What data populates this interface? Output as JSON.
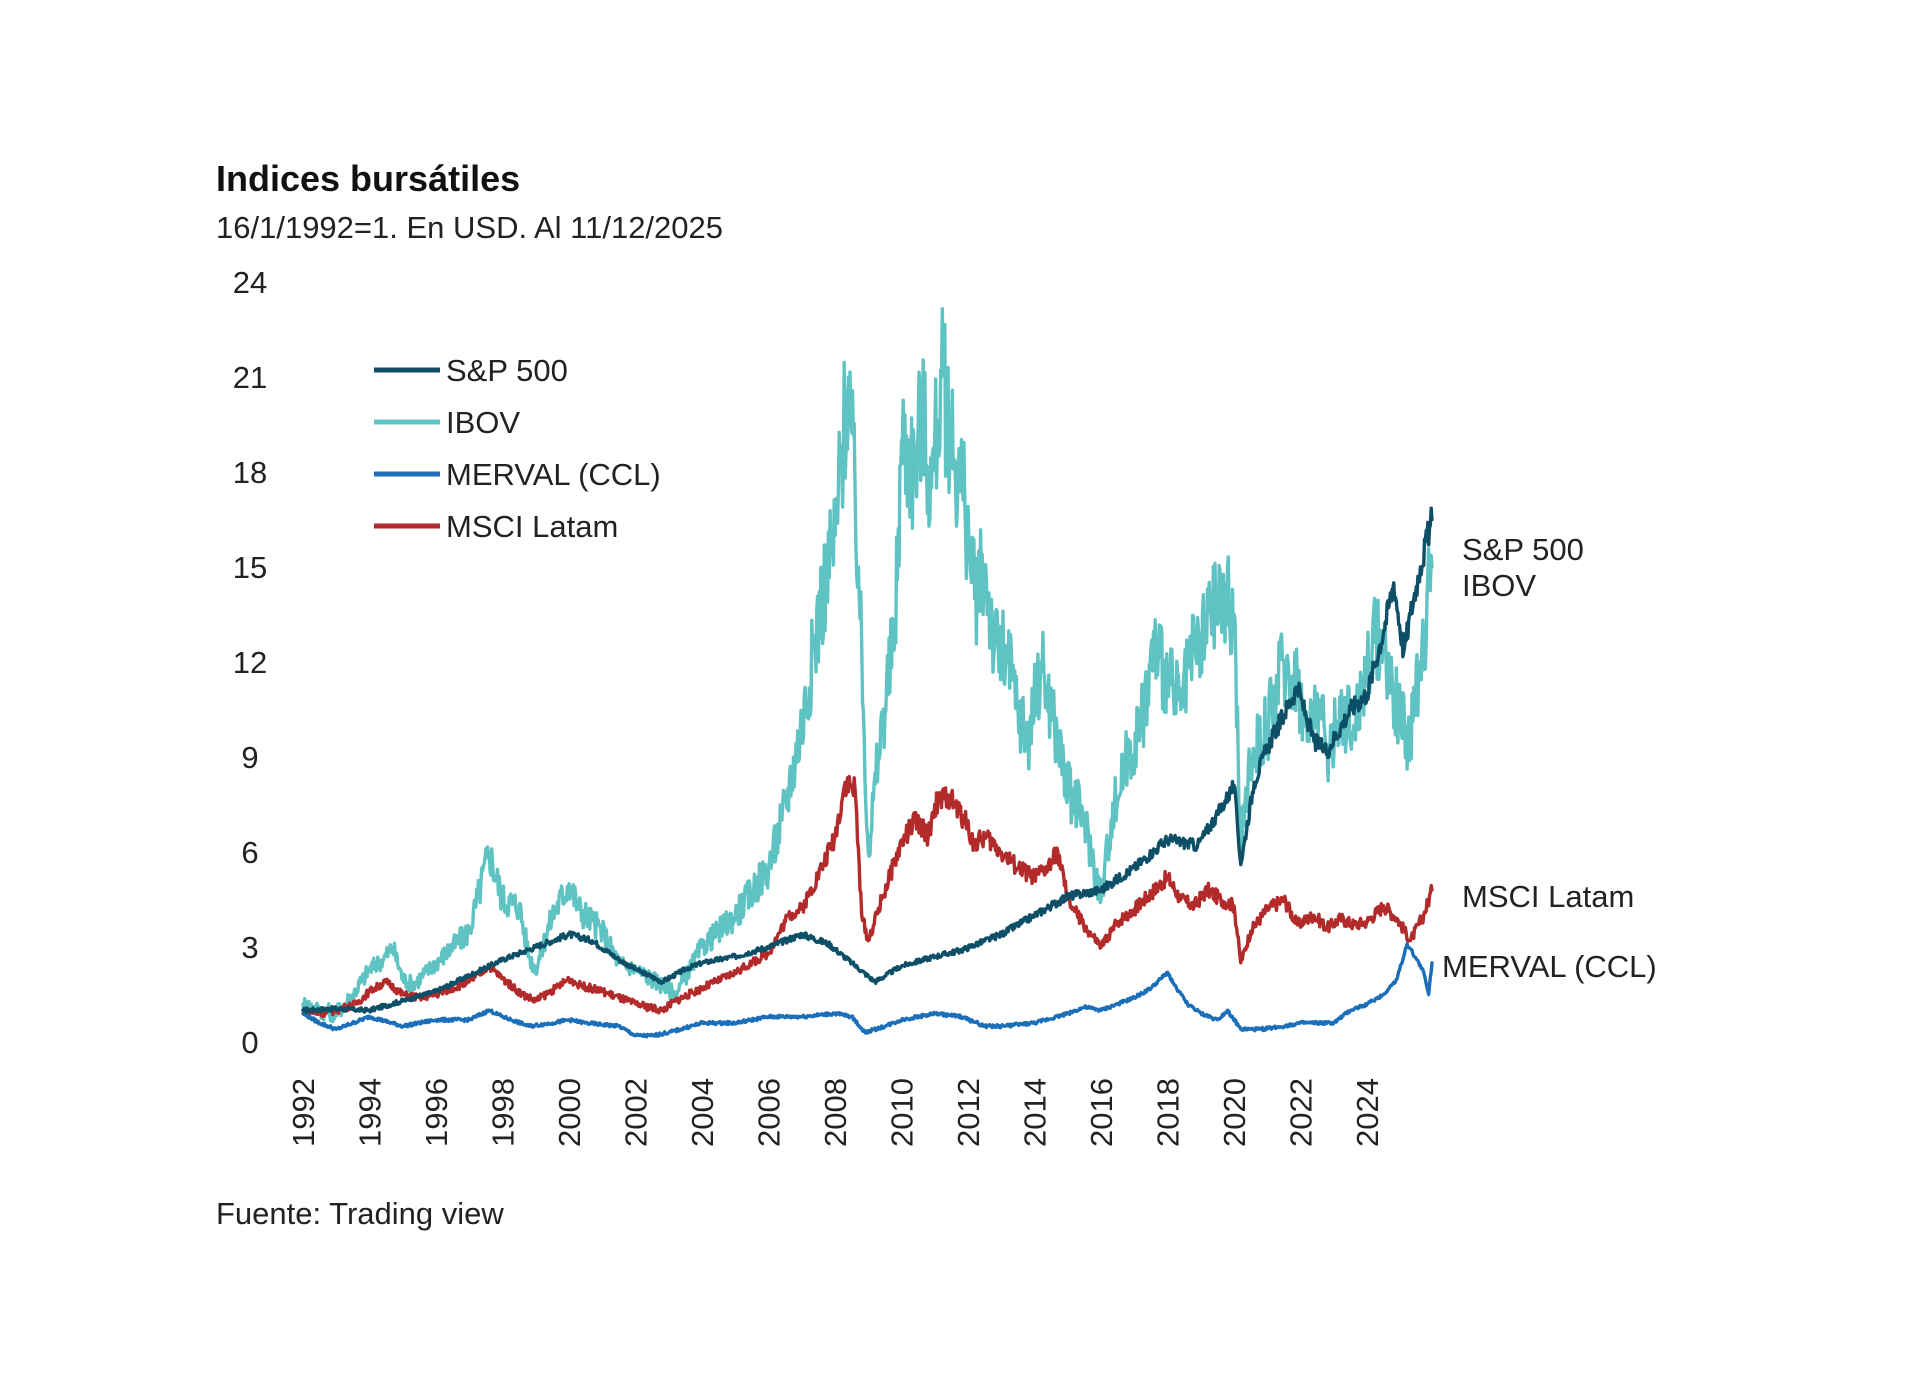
{
  "title": "Indices bursátiles",
  "subtitle": "16/1/1992=1. En USD. Al 11/12/2025",
  "source": "Fuente: Trading view",
  "chart_data": {
    "type": "line",
    "title": "Indices bursátiles",
    "subtitle": "16/1/1992=1. En USD. Al 11/12/2025",
    "xlabel": "",
    "ylabel": "",
    "xlim": [
      1992,
      2025.95
    ],
    "ylim": [
      0,
      24
    ],
    "y_ticks": [
      "0",
      "3",
      "6",
      "9",
      "12",
      "15",
      "18",
      "21",
      "24"
    ],
    "x_ticks": [
      "1992",
      "1994",
      "1996",
      "1998",
      "2000",
      "2002",
      "2004",
      "2006",
      "2008",
      "2010",
      "2012",
      "2014",
      "2016",
      "2018",
      "2020",
      "2022",
      "2024"
    ],
    "grid": false,
    "legend_position": "top-left",
    "series": [
      {
        "name": "S&P 500",
        "color": "#0d4f66",
        "end_label": "S&P 500",
        "x": [
          1992.0,
          1993.0,
          1994.0,
          1995.0,
          1996.0,
          1997.0,
          1998.0,
          1999.0,
          2000.0,
          2000.7,
          2001.5,
          2002.0,
          2002.8,
          2003.5,
          2004.0,
          2005.0,
          2006.0,
          2007.0,
          2007.8,
          2008.5,
          2009.2,
          2010.0,
          2011.0,
          2011.8,
          2013.0,
          2014.0,
          2015.0,
          2016.0,
          2017.0,
          2018.0,
          2018.9,
          2019.5,
          2020.0,
          2020.2,
          2020.6,
          2021.0,
          2021.9,
          2022.4,
          2022.8,
          2023.5,
          2024.0,
          2024.5,
          2024.8,
          2025.1,
          2025.3,
          2025.6,
          2025.95
        ],
        "values": [
          1.0,
          1.05,
          1.0,
          1.3,
          1.6,
          2.1,
          2.6,
          3.0,
          3.4,
          3.2,
          2.6,
          2.3,
          1.9,
          2.3,
          2.5,
          2.7,
          3.0,
          3.4,
          3.1,
          2.5,
          1.9,
          2.4,
          2.7,
          2.9,
          3.4,
          4.0,
          4.6,
          4.8,
          5.5,
          6.4,
          6.2,
          7.2,
          8.1,
          5.6,
          8.2,
          9.3,
          11.2,
          9.5,
          9.2,
          10.5,
          11.0,
          13.0,
          14.5,
          12.3,
          13.5,
          15.0,
          16.5
        ]
      },
      {
        "name": "IBOV",
        "color": "#5fc3c3",
        "end_label": "IBOV",
        "x": [
          1992.0,
          1992.5,
          1993.0,
          1993.5,
          1994.0,
          1994.4,
          1994.7,
          1995.0,
          1995.3,
          1996.0,
          1997.0,
          1997.6,
          1998.0,
          1998.5,
          1998.8,
          1999.0,
          1999.5,
          2000.0,
          2000.3,
          2001.0,
          2001.5,
          2002.0,
          2002.8,
          2003.2,
          2004.0,
          2004.5,
          2005.0,
          2006.0,
          2006.4,
          2006.7,
          2007.0,
          2007.6,
          2008.0,
          2008.4,
          2008.7,
          2009.0,
          2009.3,
          2009.8,
          2010.0,
          2010.4,
          2010.6,
          2010.9,
          2011.2,
          2011.5,
          2011.9,
          2012.2,
          2012.5,
          2012.8,
          2013.2,
          2013.5,
          2013.8,
          2014.2,
          2014.6,
          2015.0,
          2015.5,
          2016.0,
          2016.3,
          2016.8,
          2017.2,
          2017.6,
          2018.0,
          2018.4,
          2018.7,
          2019.0,
          2019.3,
          2019.6,
          2020.0,
          2020.2,
          2020.5,
          2021.0,
          2021.5,
          2021.9,
          2022.2,
          2022.5,
          2022.8,
          2023.2,
          2023.6,
          2024.0,
          2024.4,
          2024.9,
          2025.3,
          2025.6,
          2025.95
        ],
        "values": [
          1.2,
          1.0,
          0.9,
          1.5,
          2.3,
          2.6,
          3.0,
          2.0,
          1.8,
          2.5,
          3.5,
          6.0,
          4.5,
          4.3,
          2.7,
          2.3,
          4.0,
          5.0,
          4.2,
          3.5,
          2.5,
          2.3,
          1.8,
          1.5,
          3.0,
          3.5,
          4.0,
          5.5,
          7.0,
          8.5,
          10.0,
          14.0,
          16.0,
          21.0,
          15.0,
          6.0,
          9.0,
          13.0,
          19.0,
          18.0,
          20.0,
          17.5,
          21.0,
          19.0,
          17.0,
          14.0,
          15.0,
          12.5,
          12.0,
          10.5,
          9.5,
          12.0,
          10.0,
          8.0,
          7.0,
          4.5,
          7.0,
          9.0,
          10.0,
          12.5,
          11.5,
          10.5,
          12.0,
          12.5,
          13.5,
          14.0,
          13.5,
          6.0,
          9.0,
          10.0,
          12.0,
          11.5,
          9.5,
          11.0,
          9.0,
          10.5,
          10.0,
          12.0,
          13.0,
          10.5,
          9.5,
          12.0,
          15.0
        ]
      },
      {
        "name": "MERVAL (CCL)",
        "color": "#1b6eb8",
        "end_label": "MERVAL (CCL)",
        "x": [
          1992.0,
          1992.5,
          1993.0,
          1994.0,
          1995.0,
          1996.0,
          1997.0,
          1997.6,
          1998.0,
          1998.8,
          1999.5,
          2000.0,
          2000.5,
          2001.5,
          2002.0,
          2002.5,
          2003.0,
          2004.0,
          2005.0,
          2006.0,
          2007.0,
          2008.0,
          2008.5,
          2008.9,
          2009.5,
          2010.0,
          2011.0,
          2011.8,
          2012.5,
          2013.0,
          2014.0,
          2015.0,
          2015.5,
          2016.0,
          2016.5,
          2017.0,
          2017.5,
          2018.0,
          2018.2,
          2018.6,
          2019.0,
          2019.5,
          2019.8,
          2020.2,
          2020.8,
          2021.5,
          2022.0,
          2022.5,
          2023.0,
          2023.5,
          2024.0,
          2024.5,
          2024.9,
          2025.2,
          2025.5,
          2025.7,
          2025.85,
          2025.95
        ],
        "values": [
          0.9,
          0.6,
          0.4,
          0.8,
          0.5,
          0.7,
          0.7,
          1.0,
          0.8,
          0.5,
          0.6,
          0.7,
          0.6,
          0.5,
          0.2,
          0.2,
          0.3,
          0.6,
          0.6,
          0.8,
          0.8,
          0.9,
          0.8,
          0.3,
          0.5,
          0.7,
          0.9,
          0.8,
          0.5,
          0.5,
          0.6,
          0.9,
          1.1,
          1.0,
          1.2,
          1.4,
          1.7,
          2.2,
          1.8,
          1.2,
          0.9,
          0.7,
          1.0,
          0.4,
          0.4,
          0.5,
          0.6,
          0.6,
          0.6,
          1.0,
          1.2,
          1.5,
          2.0,
          3.1,
          2.6,
          2.2,
          1.5,
          2.5
        ]
      },
      {
        "name": "MSCI Latam",
        "color": "#b22a2a",
        "end_label": "MSCI Latam",
        "x": [
          1992.0,
          1992.5,
          1993.0,
          1993.6,
          1994.0,
          1994.5,
          1995.0,
          1995.5,
          1996.0,
          1997.0,
          1997.6,
          1998.0,
          1998.6,
          1999.0,
          1999.6,
          2000.0,
          2000.3,
          2001.0,
          2002.0,
          2002.8,
          2003.2,
          2004.0,
          2005.0,
          2006.0,
          2006.6,
          2007.0,
          2007.6,
          2008.0,
          2008.3,
          2008.6,
          2008.8,
          2009.0,
          2009.4,
          2010.0,
          2010.4,
          2010.8,
          2011.0,
          2011.4,
          2011.9,
          2012.2,
          2012.5,
          2013.0,
          2013.5,
          2014.0,
          2014.4,
          2014.7,
          2015.0,
          2015.6,
          2016.0,
          2016.5,
          2017.0,
          2017.6,
          2018.0,
          2018.4,
          2018.8,
          2019.2,
          2019.6,
          2020.0,
          2020.2,
          2020.5,
          2021.0,
          2021.5,
          2021.9,
          2022.4,
          2022.8,
          2023.2,
          2023.6,
          2024.0,
          2024.5,
          2024.9,
          2025.3,
          2025.7,
          2025.95
        ],
        "values": [
          1.0,
          0.9,
          1.0,
          1.2,
          1.6,
          1.9,
          1.5,
          1.4,
          1.5,
          1.9,
          2.4,
          2.0,
          1.5,
          1.3,
          1.7,
          2.0,
          1.8,
          1.6,
          1.2,
          1.0,
          1.3,
          1.7,
          2.2,
          2.8,
          4.0,
          4.2,
          5.5,
          6.5,
          8.2,
          8.0,
          4.0,
          3.2,
          4.5,
          6.3,
          7.0,
          6.5,
          7.5,
          7.8,
          7.0,
          6.2,
          6.5,
          6.0,
          5.5,
          5.2,
          5.5,
          6.0,
          4.5,
          3.5,
          3.0,
          3.8,
          4.2,
          4.8,
          5.2,
          4.5,
          4.3,
          4.8,
          4.5,
          4.3,
          2.5,
          3.5,
          4.2,
          4.5,
          3.7,
          4.0,
          3.6,
          3.9,
          3.7,
          3.8,
          4.3,
          3.9,
          3.2,
          4.0,
          4.8
        ]
      }
    ]
  }
}
